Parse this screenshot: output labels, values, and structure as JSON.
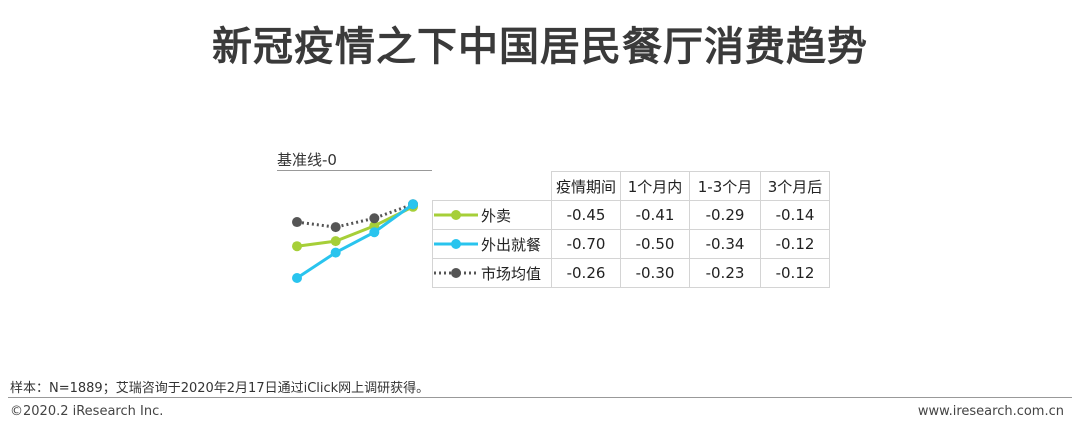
{
  "title": "新冠疫情之下中国居民餐厅消费趋势",
  "baseline_label": "基准线-0",
  "chart_data": {
    "type": "line",
    "categories": [
      "疫情期间",
      "1个月内",
      "1-3个月",
      "3个月后"
    ],
    "ylim": [
      -0.7,
      0
    ],
    "series": [
      {
        "name": "外卖",
        "values": [
          -0.45,
          -0.41,
          -0.29,
          -0.14
        ],
        "color": "#a6cf38",
        "style": "solid"
      },
      {
        "name": "外出就餐",
        "values": [
          -0.7,
          -0.5,
          -0.34,
          -0.12
        ],
        "color": "#29c4ee",
        "style": "solid"
      },
      {
        "name": "市场均值",
        "values": [
          -0.26,
          -0.3,
          -0.23,
          -0.12
        ],
        "color": "#555555",
        "style": "dotted"
      }
    ],
    "table_rows": [
      {
        "label": "外卖",
        "cells": [
          "-0.45",
          "-0.41",
          "-0.29",
          "-0.14"
        ]
      },
      {
        "label": "外出就餐",
        "cells": [
          "-0.70",
          "-0.50",
          "-0.34",
          "-0.12"
        ]
      },
      {
        "label": "市场均值",
        "cells": [
          "-0.26",
          "-0.30",
          "-0.23",
          "-0.12"
        ]
      }
    ]
  },
  "note": "样本：N=1889；艾瑞咨询于2020年2月17日通过iClick网上调研获得。",
  "copyright": "©2020.2 iResearch Inc.",
  "website": "www.iresearch.com.cn"
}
